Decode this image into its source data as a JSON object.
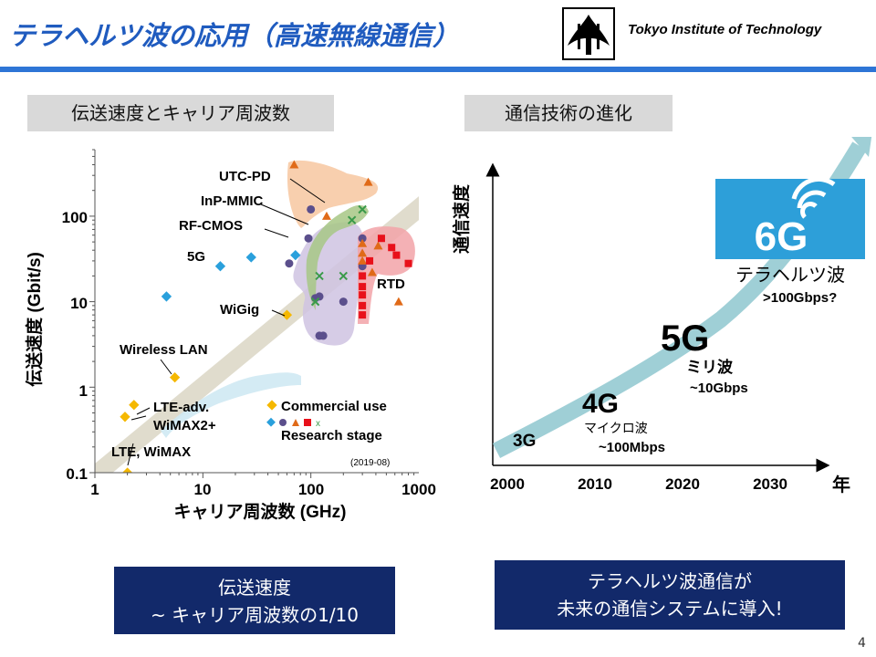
{
  "header": {
    "title": "テラヘルツ波の応用（高速無線通信）",
    "institution": "Tokyo Institute of Technology"
  },
  "left_panel": {
    "label": "伝送速度とキャリア周波数",
    "caption_line1": "伝送速度",
    "caption_line2": "~ キャリア周波数の1/10",
    "date_note": "(2019-08)",
    "annotations": {
      "utc_pd": "UTC-PD",
      "inp_mmic": "InP-MMIC",
      "rf_cmos": "RF-CMOS",
      "five_g": "5G",
      "rtd": "RTD",
      "wigig": "WiGig",
      "wireless_lan": "Wireless LAN",
      "lte_adv": "LTE-adv.",
      "wimax2": "WiMAX2+",
      "lte_wimax": "LTE, WiMAX"
    },
    "legend": {
      "commercial": "Commercial use",
      "research": "Research stage"
    }
  },
  "right_panel": {
    "label": "通信技術の進化",
    "y_axis_label": "通信速度",
    "x_unit": "年",
    "badge": "6G",
    "milestones": {
      "g3": "3G",
      "g4": "4G",
      "g4_band": "マイクロ波",
      "g4_rate": "~100Mbps",
      "g5": "5G",
      "g5_band": "ミリ波",
      "g5_rate": "~10Gbps",
      "g6_band": "テラヘルツ波",
      "g6_rate": ">100Gbps?"
    },
    "caption_line1": "テラヘルツ波通信が",
    "caption_line2": "未来の通信システムに導入!"
  },
  "page_number": "4",
  "colors": {
    "title_blue": "#1f5bbf",
    "rule_blue": "#2e75d6",
    "caption_navy": "#12296a",
    "badge_blue": "#2d9fd9",
    "arrow_teal": "#9fcfd6",
    "commercial": "#f5b800",
    "rf_cmos": "#5b4f8c",
    "inp_mmic": "#3a9a4a",
    "utc_pd": "#e06a18",
    "rtd": "#e8101a",
    "five_g": "#2aa0dc"
  },
  "chart_data": [
    {
      "type": "scatter",
      "xlabel": "キャリア周波数 (GHz)",
      "ylabel": "伝送速度 (Gbit/s)",
      "x_scale": "log",
      "y_scale": "log",
      "xlim": [
        1,
        1000
      ],
      "ylim": [
        0.1,
        600
      ],
      "x_ticks": [
        "1",
        "10",
        "100",
        "1000"
      ],
      "y_ticks": [
        "0.1",
        "1",
        "10",
        "100"
      ],
      "grid": false,
      "series": [
        {
          "name": "Commercial use",
          "marker": "diamond",
          "color": "#f5b800",
          "points": [
            [
              2.0,
              0.1
            ],
            [
              1.9,
              0.45
            ],
            [
              2.3,
              0.62
            ],
            [
              5.5,
              1.3
            ],
            [
              60,
              7
            ]
          ]
        },
        {
          "name": "5G",
          "marker": "diamond",
          "color": "#2aa0dc",
          "points": [
            [
              4.6,
              11.5
            ],
            [
              14.5,
              26
            ],
            [
              28,
              33
            ],
            [
              72,
              35
            ]
          ]
        },
        {
          "name": "RF-CMOS",
          "marker": "circle",
          "color": "#5b4f8c",
          "points": [
            [
              63,
              28
            ],
            [
              95,
              55
            ],
            [
              100,
              120
            ],
            [
              110,
              11
            ],
            [
              120,
              11.5
            ],
            [
              120,
              4
            ],
            [
              130,
              4
            ],
            [
              200,
              10
            ],
            [
              300,
              55
            ],
            [
              300,
              26
            ]
          ]
        },
        {
          "name": "InP-MMIC",
          "marker": "x",
          "color": "#3a9a4a",
          "points": [
            [
              110,
              10
            ],
            [
              120,
              20
            ],
            [
              200,
              20
            ],
            [
              240,
              90
            ],
            [
              300,
              120
            ]
          ]
        },
        {
          "name": "UTC-PD",
          "marker": "triangle",
          "color": "#e06a18",
          "points": [
            [
              70,
              400
            ],
            [
              140,
              100
            ],
            [
              300,
              30
            ],
            [
              300,
              48
            ],
            [
              300,
              37
            ],
            [
              340,
              250
            ],
            [
              370,
              22
            ],
            [
              420,
              45
            ],
            [
              650,
              10
            ]
          ]
        },
        {
          "name": "RTD",
          "marker": "square",
          "color": "#e8101a",
          "points": [
            [
              300,
              20
            ],
            [
              300,
              15
            ],
            [
              300,
              12
            ],
            [
              300,
              9
            ],
            [
              300,
              7
            ],
            [
              350,
              30
            ],
            [
              450,
              55
            ],
            [
              560,
              43
            ],
            [
              620,
              35
            ],
            [
              800,
              28
            ]
          ]
        }
      ]
    },
    {
      "type": "line",
      "xlabel": "",
      "ylabel": "通信速度",
      "x_ticks": [
        "2000",
        "2010",
        "2020",
        "2030"
      ],
      "series": [
        {
          "name": "",
          "x": [
            2000,
            2010,
            2020,
            2030
          ],
          "y_relative": [
            0.05,
            0.22,
            0.52,
            1.0
          ]
        }
      ]
    }
  ]
}
